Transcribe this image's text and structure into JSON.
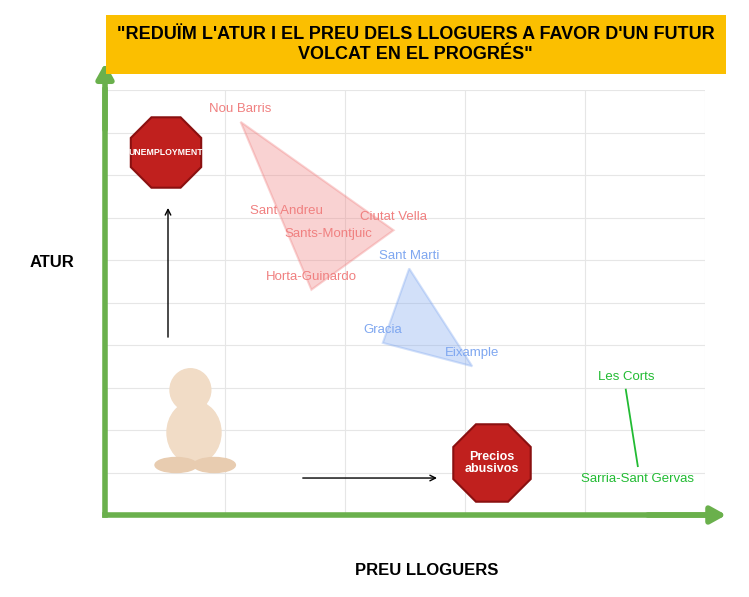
{
  "chart_data": {
    "type": "scatter",
    "title": "\"REDUÏM L'ATUR I EL PREU DELS LLOGUERS A FAVOR D'UN FUTUR VOLCAT EN EL PROGRÉS\"",
    "x_label": "PREU LLOGUERS",
    "y_label": "ATUR",
    "xlim": [
      0,
      100
    ],
    "ylim": [
      0,
      100
    ],
    "xticks": [
      0,
      20,
      40,
      60,
      80,
      100
    ],
    "yticks": [
      0,
      10,
      20,
      30,
      40,
      50,
      60,
      70,
      80,
      90,
      100
    ],
    "grid": true,
    "tick_labels": false,
    "series": [
      {
        "type": "area",
        "color": "#f08080",
        "labels": [
          "Nou Barris",
          "Sant Andreu",
          "Sants-Montjuic",
          "Ciutat Vella",
          "Horta-Guinardo"
        ],
        "x": [
          22.6,
          30.2,
          37.2,
          48.1,
          34.4
        ],
        "values": [
          92.5,
          68.5,
          63.0,
          67.0,
          53.0
        ]
      },
      {
        "type": "area",
        "color": "#7fa7f0",
        "labels": [
          "Sant Marti",
          "Gracia",
          "Eixample"
        ],
        "x": [
          50.7,
          46.3,
          61.2
        ],
        "values": [
          58.0,
          40.5,
          35.0
        ]
      },
      {
        "type": "line",
        "color": "#22bb33",
        "labels": [
          "Les Corts",
          "Sarria-Sant Gervas"
        ],
        "x": [
          86.8,
          88.8
        ],
        "values": [
          29.5,
          11.5
        ]
      }
    ],
    "icons": {
      "unemployment": "UNEMPLOYMENT",
      "prices": [
        "Precios",
        "abusivos"
      ]
    }
  }
}
